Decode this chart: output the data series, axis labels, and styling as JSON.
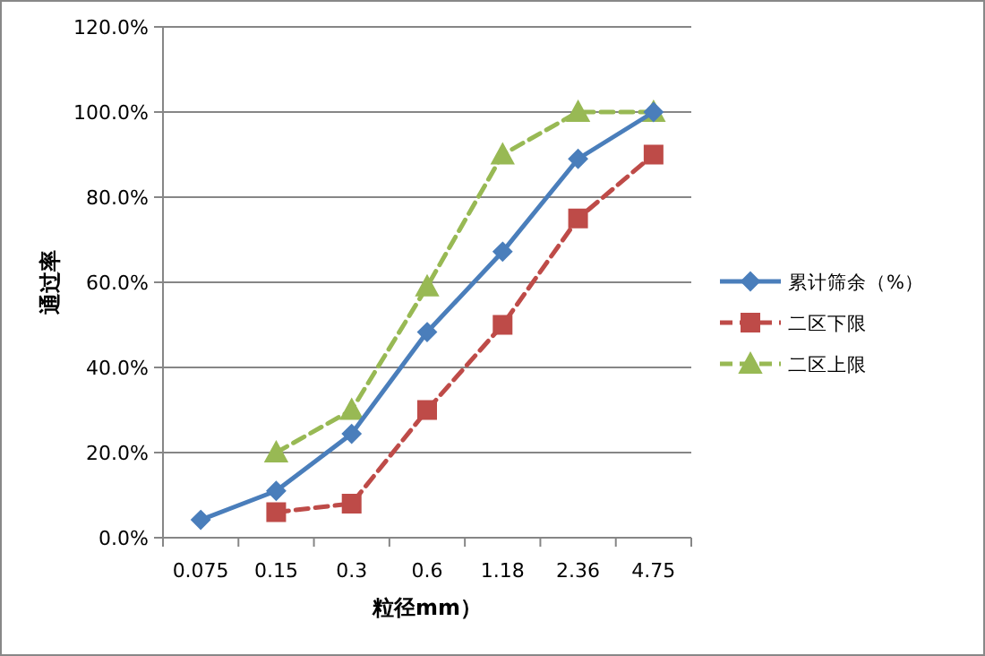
{
  "chart_data": {
    "type": "line",
    "xlabel": "粒径mm）",
    "ylabel": "通过率",
    "categories": [
      "0.075",
      "0.15",
      "0.3",
      "0.6",
      "1.18",
      "2.36",
      "4.75"
    ],
    "series": [
      {
        "name": "累计筛余（%）",
        "color": "#4a7ebb",
        "marker": "diamond",
        "line_style": "solid",
        "values": [
          4.2,
          11,
          24.4,
          48.3,
          67.2,
          89,
          100
        ]
      },
      {
        "name": "二区下限",
        "color": "#be4b48",
        "marker": "square",
        "line_style": "dashed",
        "values": [
          null,
          6,
          8,
          30,
          50,
          75,
          90
        ]
      },
      {
        "name": "二区上限",
        "color": "#98b954",
        "marker": "triangle",
        "line_style": "dashed",
        "values": [
          null,
          20,
          30,
          59,
          90,
          100,
          100
        ]
      }
    ],
    "ylim": [
      0,
      120
    ],
    "yticks": [
      {
        "value": 0,
        "label": "0.0%"
      },
      {
        "value": 20,
        "label": "20.0%"
      },
      {
        "value": 40,
        "label": "40.0%"
      },
      {
        "value": 60,
        "label": "60.0%"
      },
      {
        "value": 80,
        "label": "80.0%"
      },
      {
        "value": 100,
        "label": "100.0%"
      },
      {
        "value": 120,
        "label": "120.0%"
      }
    ],
    "grid": "y",
    "legend": "right"
  }
}
